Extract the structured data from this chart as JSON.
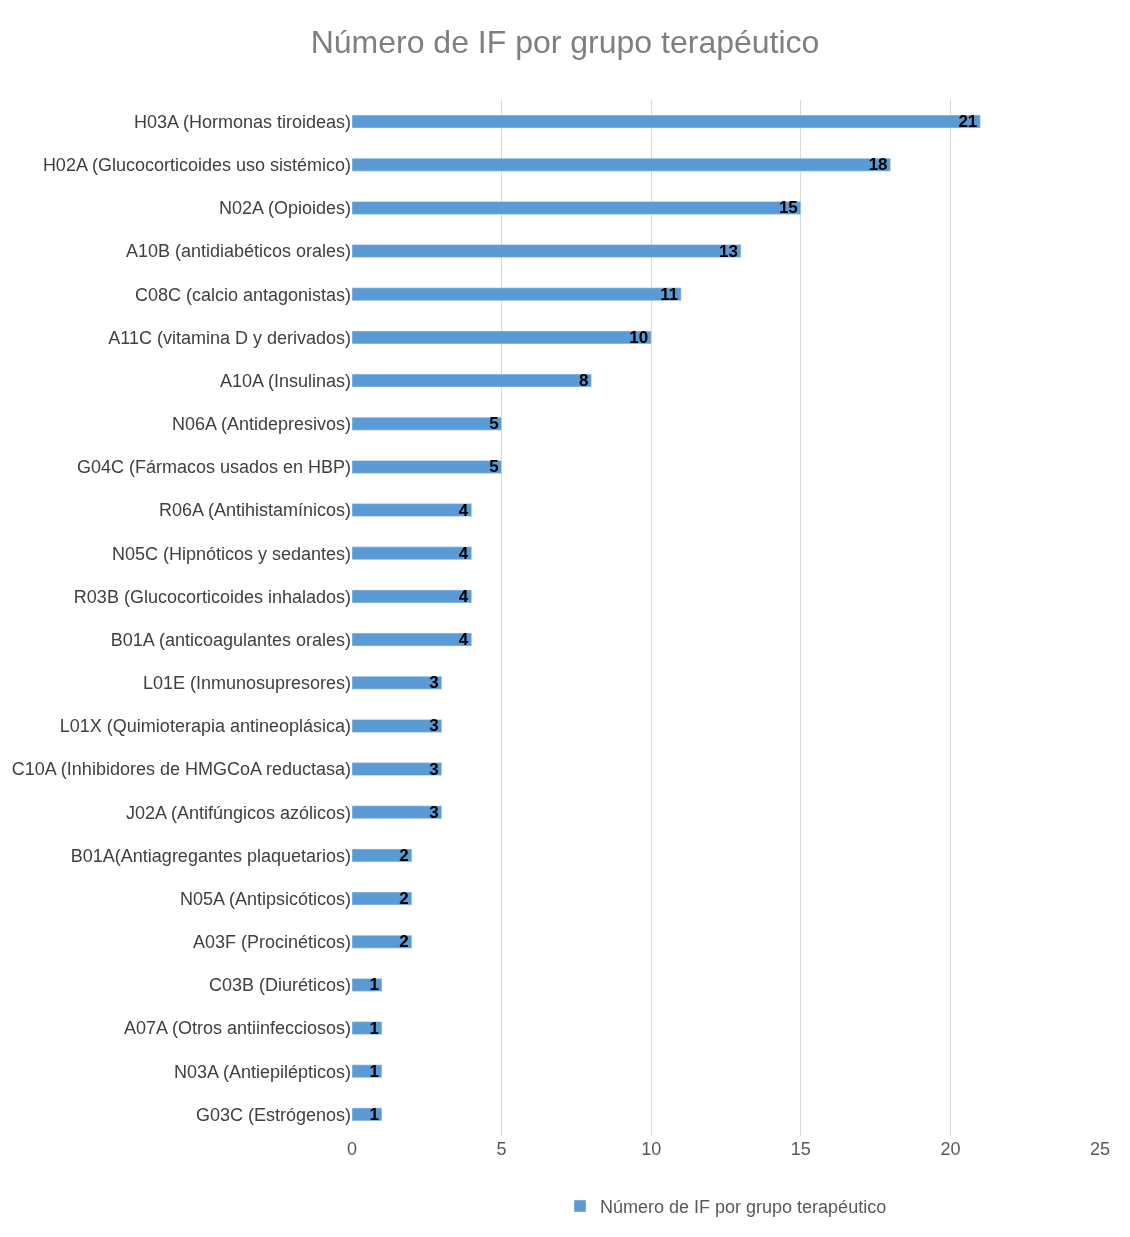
{
  "chart_data": {
    "type": "bar",
    "orientation": "horizontal",
    "title": "Número de IF por grupo terapéutico",
    "categories": [
      "H03A (Hormonas tiroideas)",
      "H02A (Glucocorticoides uso sistémico)",
      "N02A (Opioides)",
      "A10B (antidiabéticos orales)",
      "C08C (calcio antagonistas)",
      "A11C (vitamina D y derivados)",
      "A10A (Insulinas)",
      "N06A (Antidepresivos)",
      "G04C (Fármacos usados en HBP)",
      "R06A (Antihistamínicos)",
      "N05C (Hipnóticos y sedantes)",
      "R03B (Glucocorticoides inhalados)",
      "B01A (anticoagulantes orales)",
      "L01E (Inmunosupresores)",
      "L01X (Quimioterapia antineoplásica)",
      "C10A (Inhibidores de HMGCoA reductasa)",
      "J02A (Antifúngicos azólicos)",
      "B01A(Antiagregantes plaquetarios)",
      "N05A (Antipsicóticos)",
      "A03F (Procinéticos)",
      "C03B (Diuréticos)",
      "A07A (Otros antiinfecciosos)",
      "N03A (Antiepilépticos)",
      "G03C (Estrógenos)"
    ],
    "series": [
      {
        "name": "Número de IF por grupo terapéutico",
        "color": "#5b9bd5",
        "values": [
          21,
          18,
          15,
          13,
          11,
          10,
          8,
          5,
          5,
          4,
          4,
          4,
          4,
          3,
          3,
          3,
          3,
          2,
          2,
          2,
          1,
          1,
          1,
          1
        ]
      }
    ],
    "xlim": [
      0,
      25
    ],
    "xticks": [
      0,
      5,
      10,
      15,
      20,
      25
    ],
    "grid": "x",
    "legend": "bottom",
    "data_labels": true
  }
}
